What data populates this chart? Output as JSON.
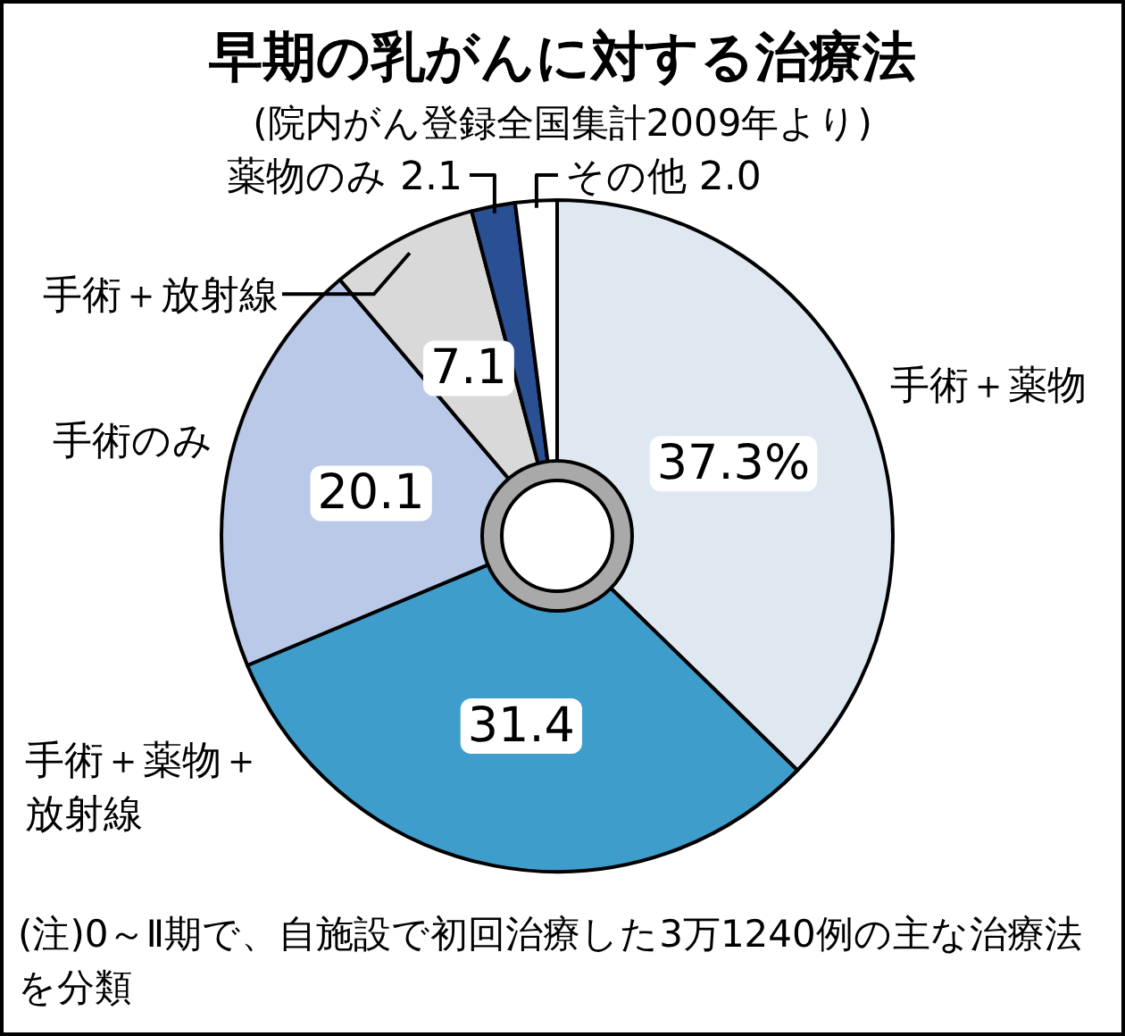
{
  "chart_data": {
    "type": "donut",
    "title": "早期の乳がんに対する治療法",
    "subtitle": "(院内がん登録全国集計2009年より)",
    "categories": [
      "手術＋薬物",
      "手術＋薬物＋放射線",
      "手術のみ",
      "手術＋放射線",
      "薬物のみ",
      "その他"
    ],
    "values": [
      37.3,
      31.4,
      20.1,
      7.1,
      2.1,
      2.0
    ],
    "colors": [
      "#dfe7f1",
      "#3f9dcc",
      "#b9c9e7",
      "#d9d9d9",
      "#2a4f93",
      "#ffffff"
    ],
    "value_labels": [
      "37.3%",
      "31.4",
      "20.1",
      "7.1",
      "2.1",
      "2.0"
    ],
    "annotations": [
      "(注)0～Ⅱ期で、自施設で初回治療した3万1240例の主な治療法を分類"
    ]
  }
}
